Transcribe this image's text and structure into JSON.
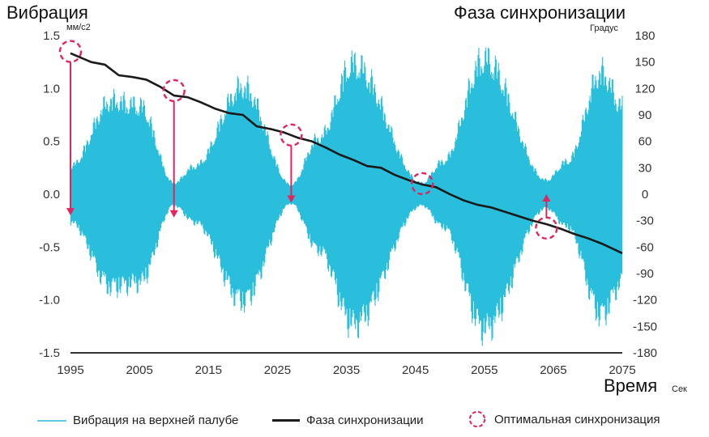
{
  "chart_data": {
    "type": "line",
    "title_left": "Вибрация",
    "unit_left": "мм/с2",
    "title_right": "Фаза синхронизации",
    "unit_right": "Градус",
    "xlabel": "Время",
    "xunit": "Сек",
    "xlim": [
      1995,
      2075
    ],
    "x_ticks": [
      "1995",
      "2005",
      "2015",
      "2025",
      "2035",
      "2045",
      "2055",
      "2065",
      "2075"
    ],
    "ylim_left": [
      -1.5,
      1.5
    ],
    "y_left_ticks": [
      "1.5",
      "1.0",
      "0.5",
      "0.0",
      "-0.5",
      "-1.0",
      "-1.5"
    ],
    "ylim_right": [
      -180,
      180
    ],
    "y_right_ticks": [
      "180",
      "150",
      "120",
      "90",
      "60",
      "30",
      "0",
      "-30",
      "-60",
      "-90",
      "-120",
      "-150",
      "-180"
    ],
    "series": [
      {
        "name": "Вибрация на верхней палубе",
        "color": "#1fbadb",
        "envelope_peaks": [
          {
            "x": 1995,
            "amp": 0.3
          },
          {
            "x": 2001,
            "amp": 1.0
          },
          {
            "x": 2005,
            "amp": 0.95
          },
          {
            "x": 2010,
            "amp": 0.12
          },
          {
            "x": 2013,
            "amp": 0.3
          },
          {
            "x": 2020,
            "amp": 1.15
          },
          {
            "x": 2027,
            "amp": 0.1
          },
          {
            "x": 2031,
            "amp": 0.6
          },
          {
            "x": 2036,
            "amp": 1.4
          },
          {
            "x": 2046,
            "amp": 0.12
          },
          {
            "x": 2049,
            "amp": 0.35
          },
          {
            "x": 2055,
            "amp": 1.45
          },
          {
            "x": 2064,
            "amp": 0.15
          },
          {
            "x": 2067,
            "amp": 0.35
          },
          {
            "x": 2072,
            "amp": 1.3
          },
          {
            "x": 2075,
            "amp": 0.95
          }
        ]
      },
      {
        "name": "Фаза синхронизации",
        "color": "#1a1a1a",
        "x": [
          1995,
          1998,
          2000,
          2002,
          2004,
          2006,
          2008,
          2010,
          2012,
          2014,
          2016,
          2018,
          2020,
          2022,
          2024,
          2026,
          2028,
          2030,
          2032,
          2034,
          2036,
          2038,
          2040,
          2042,
          2044,
          2046,
          2048,
          2050,
          2052,
          2054,
          2056,
          2058,
          2060,
          2062,
          2064,
          2066,
          2068,
          2070,
          2072,
          2075
        ],
        "y": [
          160,
          150,
          147,
          135,
          133,
          130,
          122,
          112,
          110,
          104,
          97,
          92,
          90,
          77,
          74,
          70,
          64,
          60,
          53,
          45,
          39,
          32,
          30,
          22,
          16,
          11,
          8,
          0,
          -7,
          -12,
          -15,
          -20,
          -25,
          -30,
          -34,
          -39,
          -45,
          -50,
          -56,
          -67
        ]
      }
    ],
    "annotations": {
      "name": "Оптимальная синхронизация",
      "color": "#e0245e",
      "points": [
        {
          "x": 1995,
          "vib": 1.35,
          "arrow_to_vib": -0.2
        },
        {
          "x": 2010,
          "vib": 0.98,
          "arrow_to_vib": -0.22
        },
        {
          "x": 2027,
          "vib": 0.56,
          "arrow_to_vib": -0.08
        },
        {
          "x": 2046,
          "vib": 0.1,
          "arrow_to_vib": null
        },
        {
          "x": 2064,
          "vib": -0.32,
          "arrow_to_vib": 0.0
        }
      ]
    },
    "grid": false,
    "legend": "bottom"
  }
}
